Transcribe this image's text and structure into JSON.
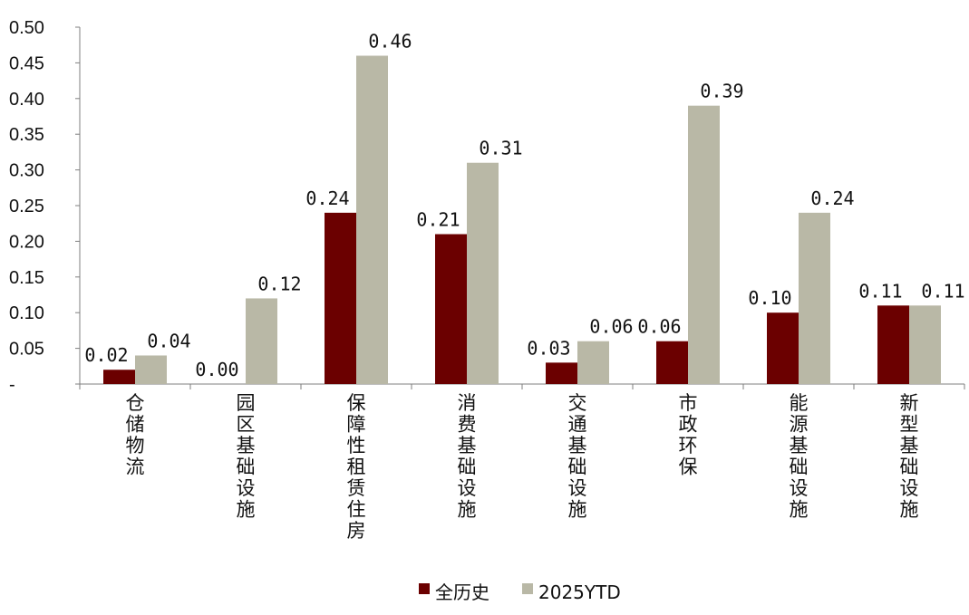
{
  "chart_data": {
    "type": "bar",
    "categories": [
      "仓储物流",
      "园区基础设施",
      "保障性租赁住房",
      "消费基础设施",
      "交通基础设施",
      "市政环保",
      "能源基础设施",
      "新型基础设施"
    ],
    "series": [
      {
        "name": "全历史",
        "color": "#6b0000",
        "values": [
          0.02,
          0.0,
          0.24,
          0.21,
          0.03,
          0.06,
          0.1,
          0.11
        ],
        "labels": [
          "0.02",
          "0.00",
          "0.24",
          "0.21",
          "0.03",
          "0.06",
          "0.10",
          "0.11"
        ]
      },
      {
        "name": "2025YTD",
        "color": "#b9b8a6",
        "values": [
          0.04,
          0.12,
          0.46,
          0.31,
          0.06,
          0.39,
          0.24,
          0.11
        ],
        "labels": [
          "0.04",
          "0.12",
          "0.46",
          "0.31",
          "0.06",
          "0.39",
          "0.24",
          "0.11"
        ]
      }
    ],
    "y_ticks": [
      "-",
      "0.05",
      "0.10",
      "0.15",
      "0.20",
      "0.25",
      "0.30",
      "0.35",
      "0.40",
      "0.45",
      "0.50"
    ],
    "ylim": [
      0,
      0.5
    ],
    "grid": false,
    "legend_position": "bottom"
  }
}
